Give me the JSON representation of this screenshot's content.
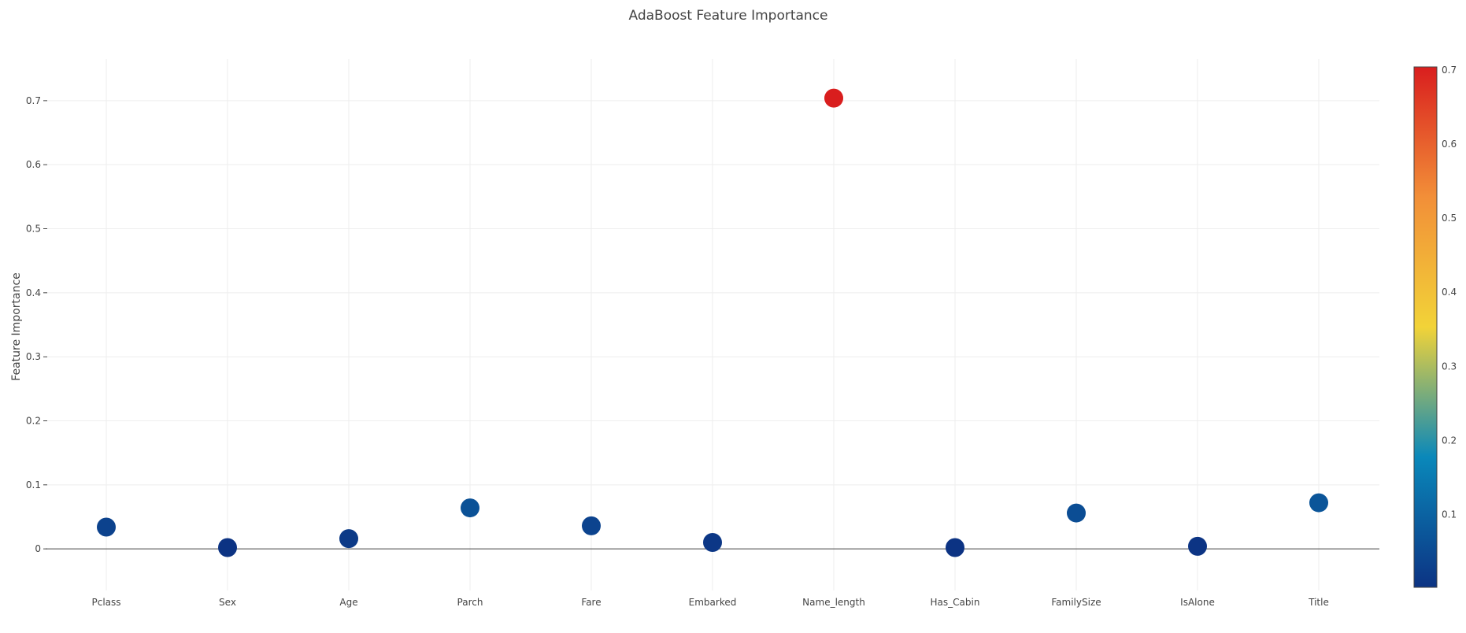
{
  "chart_data": {
    "type": "scatter",
    "title": "AdaBoost Feature Importance",
    "xlabel": "",
    "ylabel": "Feature Importance",
    "categories": [
      "Pclass",
      "Sex",
      "Age",
      "Parch",
      "Fare",
      "Embarked",
      "Name_length",
      "Has_Cabin",
      "FamilySize",
      "IsAlone",
      "Title"
    ],
    "values": [
      0.034,
      0.002,
      0.016,
      0.064,
      0.036,
      0.01,
      0.704,
      0.002,
      0.056,
      0.004,
      0.072
    ],
    "ylim": [
      -0.065,
      0.765
    ],
    "yticks": [
      0,
      0.1,
      0.2,
      0.3,
      0.4,
      0.5,
      0.6,
      0.7
    ],
    "ytick_labels": [
      "0",
      "0.1",
      "0.2",
      "0.3",
      "0.4",
      "0.5",
      "0.6",
      "0.7"
    ],
    "grid": true,
    "colorscale": {
      "name": "Portland",
      "range": [
        0.002,
        0.704
      ],
      "ticks": [
        0.1,
        0.2,
        0.3,
        0.4,
        0.5,
        0.6,
        0.7
      ],
      "tick_labels": [
        "0.1",
        "0.2",
        "0.3",
        "0.4",
        "0.5",
        "0.6",
        "0.7"
      ],
      "stops": [
        {
          "offset": 0.0,
          "color": "#0c3383"
        },
        {
          "offset": 0.25,
          "color": "#0a88ba"
        },
        {
          "offset": 0.5,
          "color": "#f2d338"
        },
        {
          "offset": 0.75,
          "color": "#f28f38"
        },
        {
          "offset": 1.0,
          "color": "#d91e1e"
        }
      ]
    }
  }
}
